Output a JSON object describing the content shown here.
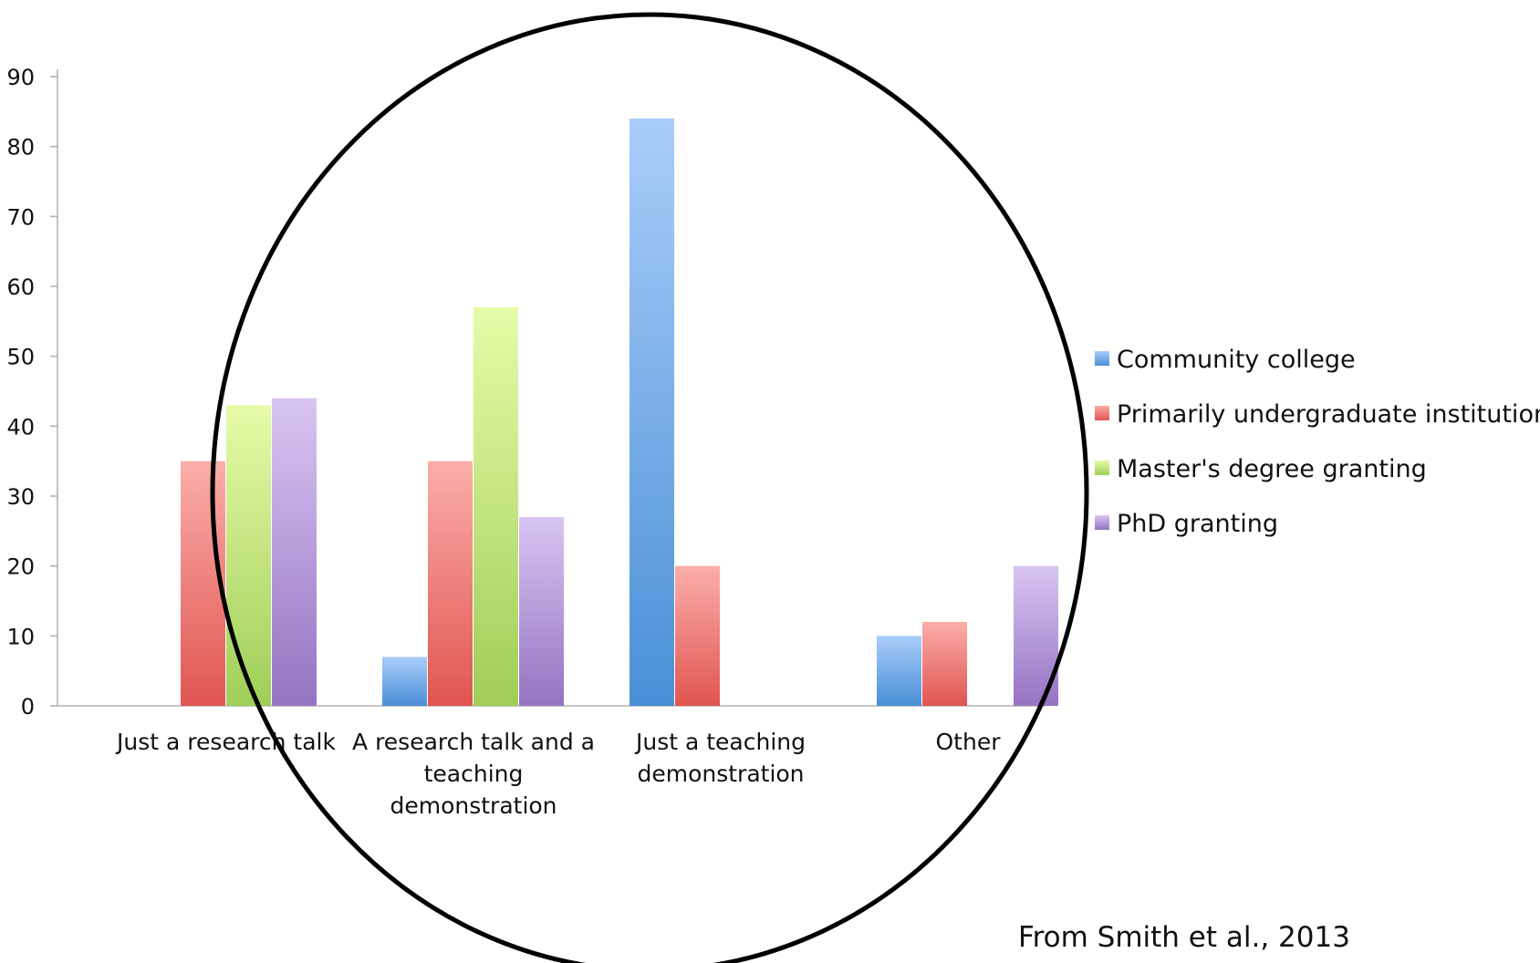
{
  "chart_data": {
    "type": "bar",
    "categories": [
      [
        "Just a research talk"
      ],
      [
        "A research talk and a",
        "teaching",
        "demonstration"
      ],
      [
        "Just a teaching",
        "demonstration"
      ],
      [
        "Other"
      ]
    ],
    "series": [
      {
        "name": "Community college",
        "values": [
          0,
          7,
          84,
          10
        ],
        "color_light": "#a9cdfa",
        "color_dark": "#4a8fd6"
      },
      {
        "name": "Primarily undergraduate institution",
        "values": [
          35,
          35,
          20,
          12
        ],
        "color_light": "#fbaeaa",
        "color_dark": "#e05550"
      },
      {
        "name": "Master's degree granting",
        "values": [
          43,
          57,
          0,
          0
        ],
        "color_light": "#e6fba8",
        "color_dark": "#9fce58"
      },
      {
        "name": "PhD granting",
        "values": [
          44,
          27,
          0,
          20
        ],
        "color_light": "#d8c5f2",
        "color_dark": "#9573c2"
      }
    ],
    "ylim": [
      0,
      90
    ],
    "yticks": [
      0,
      10,
      20,
      30,
      40,
      50,
      60,
      70,
      80,
      90
    ],
    "title": "",
    "xlabel": "",
    "ylabel": "",
    "legend_position": "right",
    "grid": false,
    "annotation_shape": "circle"
  },
  "source_note": "From Smith et al., 2013"
}
